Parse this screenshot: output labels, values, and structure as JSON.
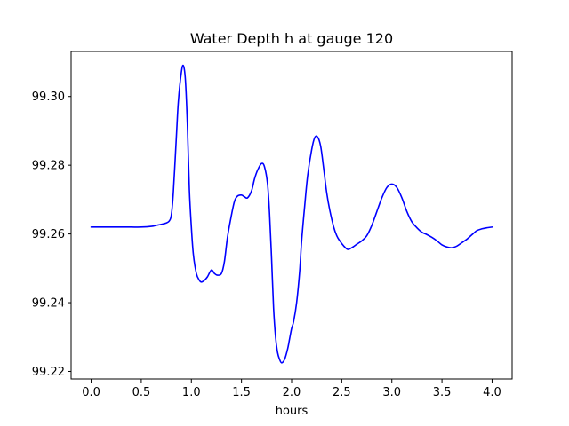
{
  "chart_data": {
    "type": "line",
    "title": "Water Depth h at gauge 120",
    "xlabel": "hours",
    "ylabel": "",
    "xlim": [
      -0.2,
      4.2
    ],
    "ylim": [
      99.2178,
      99.3131
    ],
    "x_ticks": [
      0.0,
      0.5,
      1.0,
      1.5,
      2.0,
      2.5,
      3.0,
      3.5,
      4.0
    ],
    "x_tick_labels": [
      "0.0",
      "0.5",
      "1.0",
      "1.5",
      "2.0",
      "2.5",
      "3.0",
      "3.5",
      "4.0"
    ],
    "y_ticks": [
      99.22,
      99.24,
      99.26,
      99.28,
      99.3
    ],
    "y_tick_labels": [
      "99.22",
      "99.24",
      "99.26",
      "99.28",
      "99.30"
    ],
    "grid": false,
    "legend": "none",
    "series": [
      {
        "color": "#0000ff",
        "x": [
          0.0,
          0.1,
          0.2,
          0.3,
          0.4,
          0.5,
          0.6,
          0.65,
          0.7,
          0.75,
          0.78,
          0.8,
          0.82,
          0.85,
          0.87,
          0.9,
          0.92,
          0.94,
          0.96,
          0.98,
          1.0,
          1.02,
          1.05,
          1.08,
          1.1,
          1.13,
          1.16,
          1.2,
          1.23,
          1.26,
          1.3,
          1.33,
          1.36,
          1.4,
          1.43,
          1.46,
          1.5,
          1.53,
          1.56,
          1.6,
          1.63,
          1.66,
          1.7,
          1.73,
          1.76,
          1.78,
          1.8,
          1.82,
          1.84,
          1.86,
          1.88,
          1.9,
          1.93,
          1.96,
          1.98,
          2.0,
          2.02,
          2.05,
          2.08,
          2.1,
          2.13,
          2.16,
          2.2,
          2.23,
          2.26,
          2.29,
          2.32,
          2.35,
          2.38,
          2.42,
          2.45,
          2.48,
          2.52,
          2.56,
          2.6,
          2.65,
          2.7,
          2.75,
          2.8,
          2.85,
          2.9,
          2.95,
          3.0,
          3.05,
          3.1,
          3.15,
          3.2,
          3.25,
          3.3,
          3.35,
          3.4,
          3.45,
          3.5,
          3.55,
          3.6,
          3.65,
          3.7,
          3.75,
          3.8,
          3.85,
          3.9,
          3.95,
          4.0
        ],
        "y": [
          99.262,
          99.262,
          99.262,
          99.262,
          99.262,
          99.262,
          99.2622,
          99.2625,
          99.2628,
          99.2632,
          99.2638,
          99.2655,
          99.272,
          99.288,
          99.2985,
          99.307,
          99.309,
          99.305,
          99.292,
          99.273,
          99.262,
          99.254,
          99.2485,
          99.2465,
          99.246,
          99.2465,
          99.2475,
          99.2495,
          99.2485,
          99.248,
          99.2485,
          99.252,
          99.259,
          99.2655,
          99.2695,
          99.271,
          99.2713,
          99.2708,
          99.2705,
          99.2725,
          99.276,
          99.2785,
          99.2805,
          99.2795,
          99.2745,
          99.266,
          99.253,
          99.2385,
          99.23,
          99.2255,
          99.2235,
          99.2225,
          99.2235,
          99.2265,
          99.2295,
          99.2325,
          99.2345,
          99.24,
          99.249,
          99.258,
          99.268,
          99.277,
          99.2845,
          99.288,
          99.2882,
          99.2855,
          99.279,
          99.272,
          99.267,
          99.262,
          99.2595,
          99.258,
          99.2565,
          99.2555,
          99.256,
          99.257,
          99.258,
          99.2595,
          99.2625,
          99.2665,
          99.2705,
          99.2735,
          99.2745,
          99.2735,
          99.2705,
          99.2665,
          99.2635,
          99.2618,
          99.2605,
          99.2598,
          99.259,
          99.258,
          99.2568,
          99.2562,
          99.256,
          99.2565,
          99.2575,
          99.2585,
          99.2598,
          99.261,
          99.2615,
          99.2618,
          99.262
        ]
      }
    ]
  }
}
